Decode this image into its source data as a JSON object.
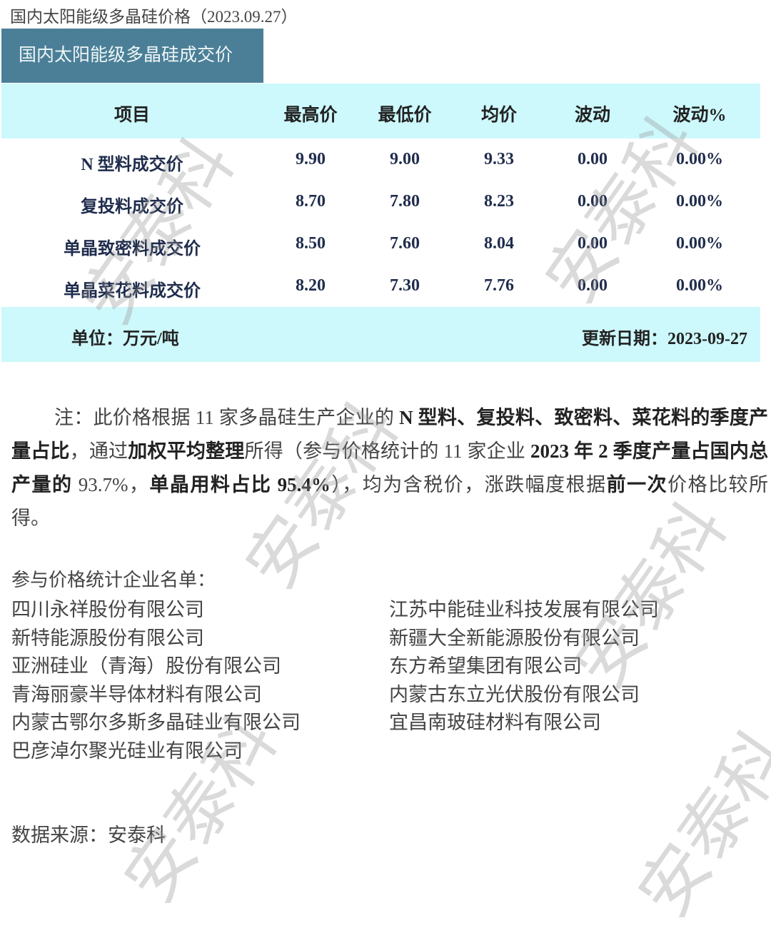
{
  "title": "国内太阳能级多晶硅价格（2023.09.27）",
  "table": {
    "caption": "国内太阳能级多晶硅成交价",
    "headers": [
      "项目",
      "最高价",
      "最低价",
      "均价",
      "波动",
      "波动%"
    ],
    "rows": [
      [
        "N 型料成交价",
        "9.90",
        "9.00",
        "9.33",
        "0.00",
        "0.00%"
      ],
      [
        "复投料成交价",
        "8.70",
        "7.80",
        "8.23",
        "0.00",
        "0.00%"
      ],
      [
        "单晶致密料成交价",
        "8.50",
        "7.60",
        "8.04",
        "0.00",
        "0.00%"
      ],
      [
        "单晶菜花料成交价",
        "8.20",
        "7.30",
        "7.76",
        "0.00",
        "0.00%"
      ]
    ],
    "unit": "单位：万元/吨",
    "update": "更新日期：2023-09-27"
  },
  "note": [
    {
      "t": "注：此价格根据 11 家多晶硅生产企业的 ",
      "b": false
    },
    {
      "t": "N 型料、复投料、致密料、菜花料的季度产量占比",
      "b": true
    },
    {
      "t": "，通过",
      "b": false
    },
    {
      "t": "加权平均整理",
      "b": true
    },
    {
      "t": "所得（参与价格统计的 11 家企业 ",
      "b": false
    },
    {
      "t": "2023 年 2 季度产量占国内总产量的",
      "b": true
    },
    {
      "t": " 93.7%，",
      "b": false
    },
    {
      "t": "单晶用料占比 95.4%",
      "b": true
    },
    {
      "t": "），均为含税价，涨跌幅度根据",
      "b": false
    },
    {
      "t": "前一次",
      "b": true
    },
    {
      "t": "价格比较所得。",
      "b": false
    }
  ],
  "companies_label": "参与价格统计企业名单：",
  "companies_left": [
    "四川永祥股份有限公司",
    "新特能源股份有限公司",
    "亚洲硅业（青海）股份有限公司",
    "青海丽豪半导体材料有限公司",
    "内蒙古鄂尔多斯多晶硅业有限公司",
    "巴彦淖尔聚光硅业有限公司"
  ],
  "companies_right": [
    "江苏中能硅业科技发展有限公司",
    "新疆大全新能源股份有限公司",
    "东方希望集团有限公司",
    "内蒙古东立光伏股份有限公司",
    "宜昌南玻硅材料有限公司"
  ],
  "source": "数据来源：安泰科",
  "watermark": "安泰科",
  "colors": {
    "caption_bg": "#4b7f97",
    "band_bg": "#cdf8fc",
    "row_text": "#1f2c4c"
  }
}
